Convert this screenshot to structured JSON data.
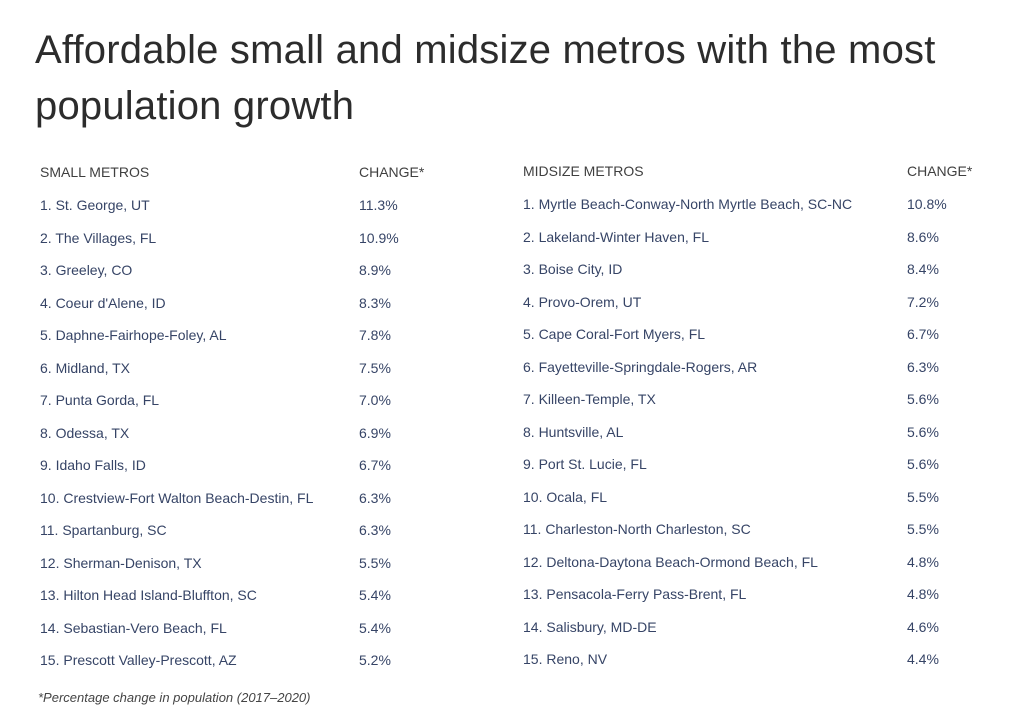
{
  "title": "Affordable small and midsize metros with the most population growth",
  "small": {
    "header": "SMALL METROS",
    "change_header": "CHANGE*",
    "rows": [
      {
        "name": "1. St. George, UT",
        "change": "11.3%"
      },
      {
        "name": "2. The Villages, FL",
        "change": "10.9%"
      },
      {
        "name": "3. Greeley, CO",
        "change": "8.9%"
      },
      {
        "name": "4. Coeur d'Alene, ID",
        "change": "8.3%"
      },
      {
        "name": "5. Daphne-Fairhope-Foley, AL",
        "change": "7.8%"
      },
      {
        "name": "6. Midland, TX",
        "change": "7.5%"
      },
      {
        "name": "7. Punta Gorda, FL",
        "change": "7.0%"
      },
      {
        "name": "8. Odessa, TX",
        "change": "6.9%"
      },
      {
        "name": "9. Idaho Falls, ID",
        "change": "6.7%"
      },
      {
        "name": "10. Crestview-Fort Walton Beach-Destin, FL",
        "change": "6.3%"
      },
      {
        "name": "11. Spartanburg, SC",
        "change": "6.3%"
      },
      {
        "name": "12. Sherman-Denison, TX",
        "change": "5.5%"
      },
      {
        "name": "13. Hilton Head Island-Bluffton, SC",
        "change": "5.4%"
      },
      {
        "name": "14. Sebastian-Vero Beach, FL",
        "change": "5.4%"
      },
      {
        "name": "15. Prescott Valley-Prescott, AZ",
        "change": "5.2%"
      }
    ]
  },
  "midsize": {
    "header": "MIDSIZE METROS",
    "change_header": "CHANGE*",
    "rows": [
      {
        "name": "1. Myrtle Beach-Conway-North Myrtle Beach, SC-NC",
        "change": "10.8%"
      },
      {
        "name": "2. Lakeland-Winter Haven, FL",
        "change": "8.6%"
      },
      {
        "name": "3. Boise City, ID",
        "change": "8.4%"
      },
      {
        "name": "4. Provo-Orem, UT",
        "change": "7.2%"
      },
      {
        "name": "5. Cape Coral-Fort Myers, FL",
        "change": "6.7%"
      },
      {
        "name": "6. Fayetteville-Springdale-Rogers, AR",
        "change": "6.3%"
      },
      {
        "name": "7. Killeen-Temple, TX",
        "change": "5.6%"
      },
      {
        "name": "8. Huntsville, AL",
        "change": "5.6%"
      },
      {
        "name": "9. Port St. Lucie, FL",
        "change": "5.6%"
      },
      {
        "name": "10. Ocala, FL",
        "change": "5.5%"
      },
      {
        "name": "11. Charleston-North Charleston, SC",
        "change": "5.5%"
      },
      {
        "name": "12. Deltona-Daytona Beach-Ormond Beach, FL",
        "change": "4.8%"
      },
      {
        "name": "13. Pensacola-Ferry Pass-Brent, FL",
        "change": "4.8%"
      },
      {
        "name": "14. Salisbury, MD-DE",
        "change": "4.6%"
      },
      {
        "name": "15. Reno, NV",
        "change": "4.4%"
      }
    ]
  },
  "footnote": "*Percentage change in population (2017–2020)"
}
